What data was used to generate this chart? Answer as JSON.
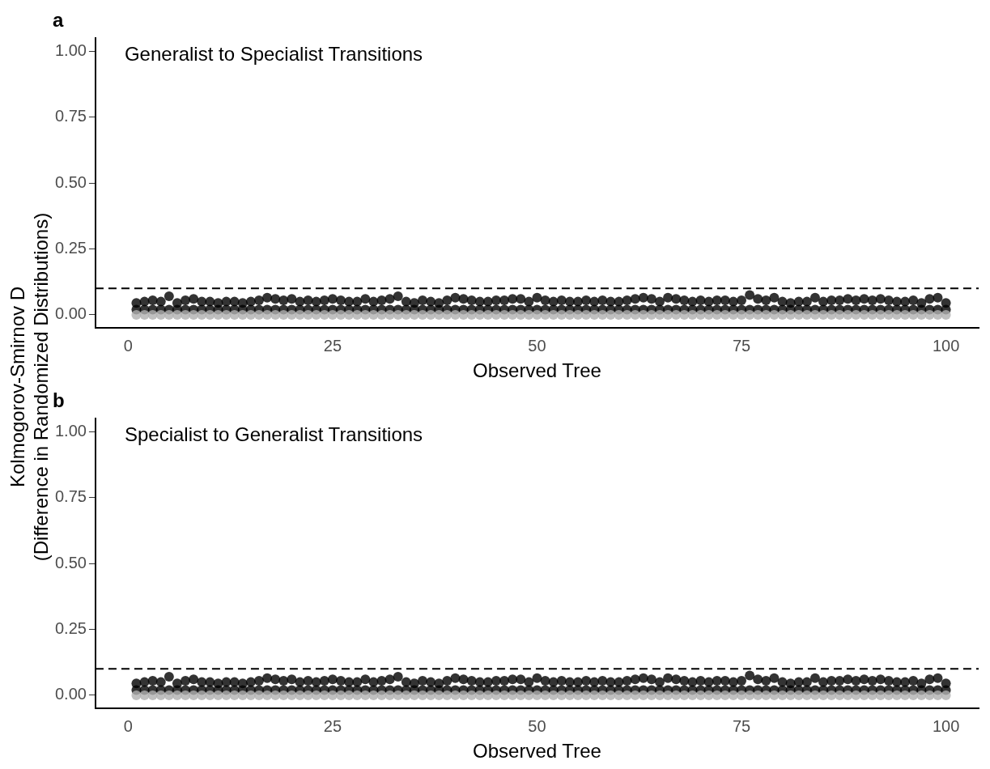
{
  "chart_data": [
    {
      "type": "scatter",
      "title": "a",
      "ylabel": "Kolmogorov-Smirnov D\n(Difference in Randomized Distributions)",
      "xlabel": "Observed Tree",
      "annotations": [
        "Generalist to Specialist Transitions"
      ],
      "marker": "circle",
      "grid": false,
      "legend": false,
      "x": [
        1,
        2,
        3,
        4,
        5,
        6,
        7,
        8,
        9,
        10,
        11,
        12,
        13,
        14,
        15,
        16,
        17,
        18,
        19,
        20,
        21,
        22,
        23,
        24,
        25,
        26,
        27,
        28,
        29,
        30,
        31,
        32,
        33,
        34,
        35,
        36,
        37,
        38,
        39,
        40,
        41,
        42,
        43,
        44,
        45,
        46,
        47,
        48,
        49,
        50,
        51,
        52,
        53,
        54,
        55,
        56,
        57,
        58,
        59,
        60,
        61,
        62,
        63,
        64,
        65,
        66,
        67,
        68,
        69,
        70,
        71,
        72,
        73,
        74,
        75,
        76,
        77,
        78,
        79,
        80,
        81,
        82,
        83,
        84,
        85,
        86,
        87,
        88,
        89,
        90,
        91,
        92,
        93,
        94,
        95,
        96,
        97,
        98,
        99,
        100
      ],
      "xlim": [
        -4,
        104
      ],
      "xticks": [
        0,
        25,
        50,
        75,
        100
      ],
      "ylim": [
        -0.05,
        1.05
      ],
      "yticks": [
        {
          "value": 0,
          "label": "0.00"
        },
        {
          "value": 0.25,
          "label": "0.25"
        },
        {
          "value": 0.5,
          "label": "0.50"
        },
        {
          "value": 0.75,
          "label": "0.75"
        },
        {
          "value": 1,
          "label": "1.00"
        }
      ],
      "ref_lines": [
        {
          "axis": "y",
          "value": 0.1,
          "label": null,
          "color": "#000000",
          "line_style": "dashed"
        }
      ],
      "series": [
        {
          "color": "#b0b0b0",
          "values": [
            0,
            0,
            0,
            0,
            0,
            0,
            0,
            0,
            0,
            0,
            0,
            0,
            0,
            0,
            0,
            0,
            0,
            0,
            0,
            0,
            0,
            0,
            0,
            0,
            0,
            0,
            0,
            0,
            0,
            0,
            0,
            0,
            0,
            0,
            0,
            0,
            0,
            0,
            0,
            0,
            0,
            0,
            0,
            0,
            0,
            0,
            0,
            0,
            0,
            0,
            0,
            0,
            0,
            0,
            0,
            0,
            0,
            0,
            0,
            0,
            0,
            0,
            0,
            0,
            0,
            0,
            0,
            0,
            0,
            0,
            0,
            0,
            0,
            0,
            0,
            0,
            0,
            0,
            0,
            0,
            0,
            0,
            0,
            0,
            0,
            0,
            0,
            0,
            0,
            0,
            0,
            0,
            0,
            0,
            0,
            0,
            0,
            0,
            0,
            0
          ]
        },
        {
          "color": "#000000",
          "values": [
            0.02,
            0.02,
            0.02,
            0.02,
            0.02,
            0.02,
            0.02,
            0.02,
            0.02,
            0.02,
            0.02,
            0.02,
            0.02,
            0.02,
            0.02,
            0.02,
            0.02,
            0.02,
            0.02,
            0.02,
            0.02,
            0.02,
            0.02,
            0.02,
            0.02,
            0.02,
            0.02,
            0.02,
            0.02,
            0.02,
            0.02,
            0.02,
            0.02,
            0.02,
            0.02,
            0.02,
            0.02,
            0.02,
            0.02,
            0.02,
            0.02,
            0.02,
            0.02,
            0.02,
            0.02,
            0.02,
            0.02,
            0.02,
            0.02,
            0.02,
            0.02,
            0.02,
            0.02,
            0.02,
            0.02,
            0.02,
            0.02,
            0.02,
            0.02,
            0.02,
            0.02,
            0.02,
            0.02,
            0.02,
            0.02,
            0.02,
            0.02,
            0.02,
            0.02,
            0.02,
            0.02,
            0.02,
            0.02,
            0.02,
            0.02,
            0.02,
            0.02,
            0.02,
            0.02,
            0.02,
            0.02,
            0.02,
            0.02,
            0.02,
            0.02,
            0.02,
            0.02,
            0.02,
            0.02,
            0.02,
            0.02,
            0.02,
            0.02,
            0.02,
            0.02,
            0.02,
            0.02,
            0.02,
            0.02,
            0.02
          ]
        },
        {
          "color": "#000000",
          "values": [
            0.045,
            0.05,
            0.055,
            0.05,
            0.07,
            0.045,
            0.055,
            0.06,
            0.05,
            0.05,
            0.045,
            0.05,
            0.05,
            0.045,
            0.05,
            0.055,
            0.065,
            0.06,
            0.055,
            0.06,
            0.05,
            0.055,
            0.05,
            0.055,
            0.06,
            0.055,
            0.05,
            0.05,
            0.06,
            0.05,
            0.055,
            0.06,
            0.07,
            0.05,
            0.045,
            0.055,
            0.05,
            0.045,
            0.055,
            0.065,
            0.06,
            0.055,
            0.05,
            0.05,
            0.055,
            0.055,
            0.06,
            0.06,
            0.05,
            0.065,
            0.055,
            0.05,
            0.055,
            0.05,
            0.05,
            0.055,
            0.05,
            0.055,
            0.05,
            0.05,
            0.055,
            0.06,
            0.065,
            0.06,
            0.05,
            0.065,
            0.06,
            0.055,
            0.05,
            0.055,
            0.05,
            0.055,
            0.055,
            0.05,
            0.055,
            0.075,
            0.06,
            0.055,
            0.065,
            0.05,
            0.045,
            0.05,
            0.05,
            0.065,
            0.05,
            0.055,
            0.055,
            0.06,
            0.055,
            0.06,
            0.055,
            0.06,
            0.055,
            0.05,
            0.05,
            0.055,
            0.045,
            0.06,
            0.065,
            0.045
          ]
        }
      ]
    },
    {
      "type": "scatter",
      "title": "b",
      "xlabel": "Observed Tree",
      "annotations": [
        "Specialist to Generalist Transitions"
      ],
      "marker": "circle",
      "grid": false,
      "legend": false,
      "x": [
        1,
        2,
        3,
        4,
        5,
        6,
        7,
        8,
        9,
        10,
        11,
        12,
        13,
        14,
        15,
        16,
        17,
        18,
        19,
        20,
        21,
        22,
        23,
        24,
        25,
        26,
        27,
        28,
        29,
        30,
        31,
        32,
        33,
        34,
        35,
        36,
        37,
        38,
        39,
        40,
        41,
        42,
        43,
        44,
        45,
        46,
        47,
        48,
        49,
        50,
        51,
        52,
        53,
        54,
        55,
        56,
        57,
        58,
        59,
        60,
        61,
        62,
        63,
        64,
        65,
        66,
        67,
        68,
        69,
        70,
        71,
        72,
        73,
        74,
        75,
        76,
        77,
        78,
        79,
        80,
        81,
        82,
        83,
        84,
        85,
        86,
        87,
        88,
        89,
        90,
        91,
        92,
        93,
        94,
        95,
        96,
        97,
        98,
        99,
        100
      ],
      "xlim": [
        -4,
        104
      ],
      "xticks": [
        0,
        25,
        50,
        75,
        100
      ],
      "ylim": [
        -0.05,
        1.05
      ],
      "yticks": [
        {
          "value": 0,
          "label": "0.00"
        },
        {
          "value": 0.25,
          "label": "0.25"
        },
        {
          "value": 0.5,
          "label": "0.50"
        },
        {
          "value": 0.75,
          "label": "0.75"
        },
        {
          "value": 1,
          "label": "1.00"
        }
      ],
      "ref_lines": [
        {
          "axis": "y",
          "value": 0.1,
          "label": null,
          "color": "#000000",
          "line_style": "dashed"
        }
      ],
      "series": [
        {
          "color": "#b0b0b0",
          "values": [
            0,
            0,
            0,
            0,
            0,
            0,
            0,
            0,
            0,
            0,
            0,
            0,
            0,
            0,
            0,
            0,
            0,
            0,
            0,
            0,
            0,
            0,
            0,
            0,
            0,
            0,
            0,
            0,
            0,
            0,
            0,
            0,
            0,
            0,
            0,
            0,
            0,
            0,
            0,
            0,
            0,
            0,
            0,
            0,
            0,
            0,
            0,
            0,
            0,
            0,
            0,
            0,
            0,
            0,
            0,
            0,
            0,
            0,
            0,
            0,
            0,
            0,
            0,
            0,
            0,
            0,
            0,
            0,
            0,
            0,
            0,
            0,
            0,
            0,
            0,
            0,
            0,
            0,
            0,
            0,
            0,
            0,
            0,
            0,
            0,
            0,
            0,
            0,
            0,
            0,
            0,
            0,
            0,
            0,
            0,
            0,
            0,
            0,
            0,
            0
          ]
        },
        {
          "color": "#000000",
          "values": [
            0.02,
            0.02,
            0.02,
            0.02,
            0.02,
            0.02,
            0.02,
            0.02,
            0.02,
            0.02,
            0.02,
            0.02,
            0.02,
            0.02,
            0.02,
            0.02,
            0.02,
            0.02,
            0.02,
            0.02,
            0.02,
            0.02,
            0.02,
            0.02,
            0.02,
            0.02,
            0.02,
            0.02,
            0.02,
            0.02,
            0.02,
            0.02,
            0.02,
            0.02,
            0.02,
            0.02,
            0.02,
            0.02,
            0.02,
            0.02,
            0.02,
            0.02,
            0.02,
            0.02,
            0.02,
            0.02,
            0.02,
            0.02,
            0.02,
            0.02,
            0.02,
            0.02,
            0.02,
            0.02,
            0.02,
            0.02,
            0.02,
            0.02,
            0.02,
            0.02,
            0.02,
            0.02,
            0.02,
            0.02,
            0.02,
            0.02,
            0.02,
            0.02,
            0.02,
            0.02,
            0.02,
            0.02,
            0.02,
            0.02,
            0.02,
            0.02,
            0.02,
            0.02,
            0.02,
            0.02,
            0.02,
            0.02,
            0.02,
            0.02,
            0.02,
            0.02,
            0.02,
            0.02,
            0.02,
            0.02,
            0.02,
            0.02,
            0.02,
            0.02,
            0.02,
            0.02,
            0.02,
            0.02,
            0.02,
            0.02
          ]
        },
        {
          "color": "#000000",
          "values": [
            0.045,
            0.05,
            0.055,
            0.05,
            0.07,
            0.045,
            0.055,
            0.06,
            0.05,
            0.05,
            0.045,
            0.05,
            0.05,
            0.045,
            0.05,
            0.055,
            0.065,
            0.06,
            0.055,
            0.06,
            0.05,
            0.055,
            0.05,
            0.055,
            0.06,
            0.055,
            0.05,
            0.05,
            0.06,
            0.05,
            0.055,
            0.06,
            0.07,
            0.05,
            0.045,
            0.055,
            0.05,
            0.045,
            0.055,
            0.065,
            0.06,
            0.055,
            0.05,
            0.05,
            0.055,
            0.055,
            0.06,
            0.06,
            0.05,
            0.065,
            0.055,
            0.05,
            0.055,
            0.05,
            0.05,
            0.055,
            0.05,
            0.055,
            0.05,
            0.05,
            0.055,
            0.06,
            0.065,
            0.06,
            0.05,
            0.065,
            0.06,
            0.055,
            0.05,
            0.055,
            0.05,
            0.055,
            0.055,
            0.05,
            0.055,
            0.075,
            0.06,
            0.055,
            0.065,
            0.05,
            0.045,
            0.05,
            0.05,
            0.065,
            0.05,
            0.055,
            0.055,
            0.06,
            0.055,
            0.06,
            0.055,
            0.06,
            0.055,
            0.05,
            0.05,
            0.055,
            0.045,
            0.06,
            0.065,
            0.045
          ]
        }
      ]
    }
  ]
}
